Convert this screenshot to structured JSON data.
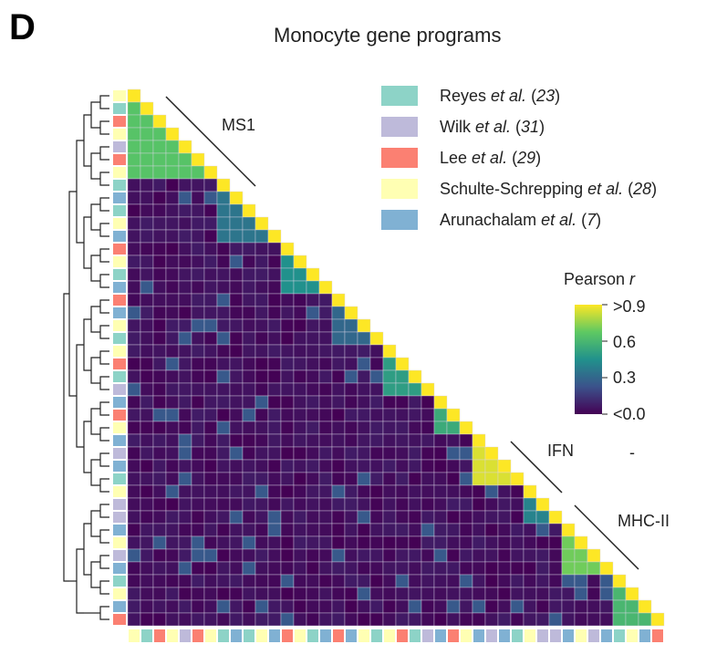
{
  "panel_letter": "D",
  "chart_data": {
    "type": "heatmap",
    "title": "Monocyte gene programs",
    "layout": "lower-triangle correlation matrix with hierarchical clustering dendrogram",
    "n_programs": 42,
    "colorbar": {
      "title_prefix": "Pearson ",
      "title_italic": "r",
      "ticks": [
        ">0.9",
        "0.6",
        "0.3",
        "<0.0"
      ],
      "range": [
        0.0,
        0.9
      ],
      "colormap": [
        "#440154",
        "#3b528b",
        "#21918c",
        "#5ec962",
        "#fde725"
      ]
    },
    "legend": [
      {
        "key": "reyes",
        "name": "Reyes ",
        "italic": "et al.",
        "ref_open": " (",
        "ref": "23",
        "ref_close": ")",
        "color": "#8dd3c7"
      },
      {
        "key": "wilk",
        "name": "Wilk ",
        "italic": "et al.",
        "ref_open": " (",
        "ref": "31",
        "ref_close": ")",
        "color": "#bebada"
      },
      {
        "key": "lee",
        "name": "Lee ",
        "italic": "et al.",
        "ref_open": " (",
        "ref": "29",
        "ref_close": ")",
        "color": "#fb8072"
      },
      {
        "key": "schulte",
        "name": "Schulte-Schrepping ",
        "italic": "et al.",
        "ref_open": " (",
        "ref": "28",
        "ref_close": ")",
        "color": "#ffffb3"
      },
      {
        "key": "arunachalam",
        "name": "Arunachalam ",
        "italic": "et al.",
        "ref_open": " (",
        "ref": "7",
        "ref_close": ")",
        "color": "#80b1d3"
      }
    ],
    "program_sources": [
      "schulte",
      "reyes",
      "lee",
      "schulte",
      "wilk",
      "lee",
      "schulte",
      "reyes",
      "arunachalam",
      "reyes",
      "schulte",
      "arunachalam",
      "lee",
      "schulte",
      "reyes",
      "arunachalam",
      "lee",
      "arunachalam",
      "schulte",
      "reyes",
      "schulte",
      "lee",
      "reyes",
      "wilk",
      "arunachalam",
      "lee",
      "schulte",
      "arunachalam",
      "wilk",
      "arunachalam",
      "reyes",
      "schulte",
      "wilk",
      "wilk",
      "arunachalam",
      "schulte",
      "wilk",
      "arunachalam",
      "reyes",
      "schulte",
      "arunachalam",
      "lee"
    ],
    "modules": [
      {
        "label": "MS1",
        "start": 0,
        "end": 6
      },
      {
        "label": "IFN",
        "start": 27,
        "end": 30
      },
      {
        "label": "MHC-II",
        "start": 32,
        "end": 36
      }
    ],
    "module_blocks": [
      {
        "start": 0,
        "end": 6,
        "r": 0.65
      },
      {
        "start": 7,
        "end": 11,
        "r": 0.35
      },
      {
        "start": 12,
        "end": 15,
        "r": 0.45
      },
      {
        "start": 16,
        "end": 19,
        "r": 0.3
      },
      {
        "start": 20,
        "end": 23,
        "r": 0.5
      },
      {
        "start": 24,
        "end": 26,
        "r": 0.55
      },
      {
        "start": 27,
        "end": 30,
        "r": 0.85
      },
      {
        "start": 31,
        "end": 33,
        "r": 0.4
      },
      {
        "start": 34,
        "end": 37,
        "r": 0.7
      },
      {
        "start": 38,
        "end": 41,
        "r": 0.6
      }
    ],
    "stray_dash": "-"
  }
}
